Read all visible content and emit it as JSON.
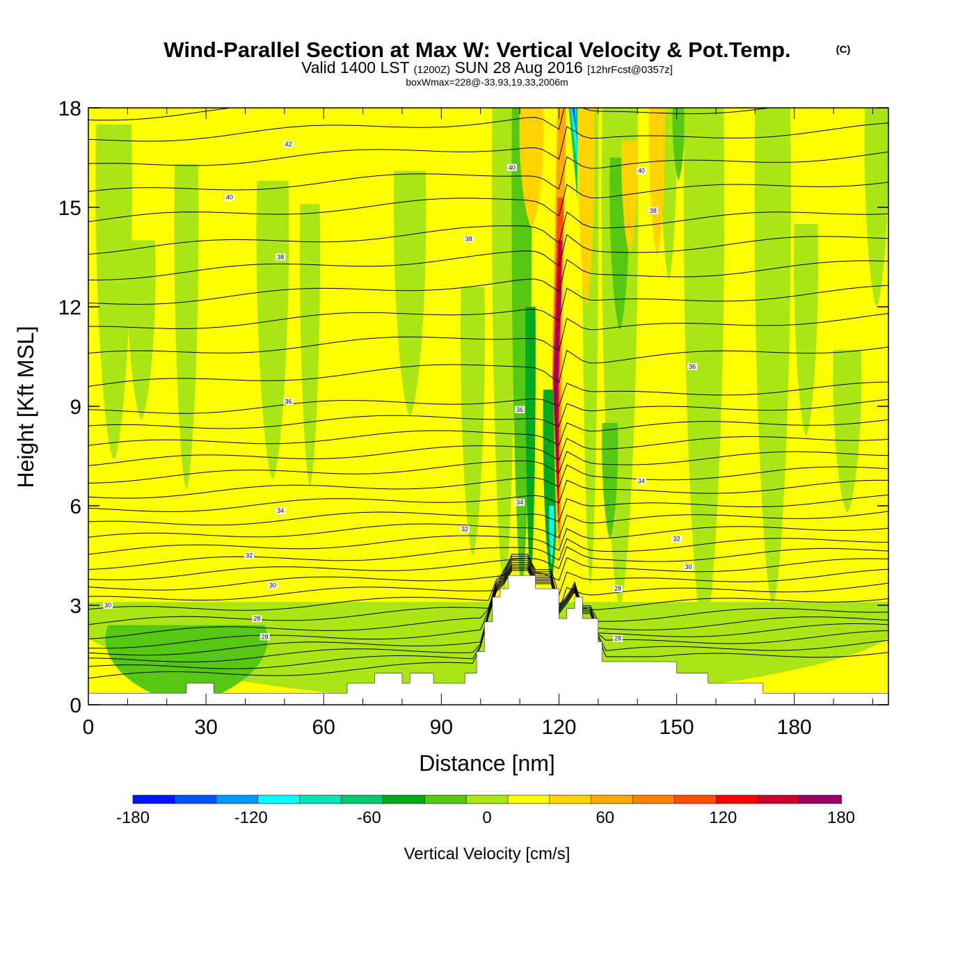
{
  "header": {
    "title": "Wind-Parallel Section at Max W: Vertical Velocity & Pot.Temp.",
    "copyright": "(C)",
    "valid_prefix": "Valid 1400 LST",
    "valid_utc": "(1200Z)",
    "valid_date": "SUN 28 Aug 2016",
    "forecast": "[12hrFcst@0357z]",
    "box_info": "boxWmax=228@-33.93,19.33,2006m"
  },
  "chart_data": {
    "type": "heatmap",
    "title": "Wind-Parallel Section at Max W: Vertical Velocity & Pot.Temp.",
    "xlabel": "Distance [nm]",
    "ylabel": "Height [Kft MSL]",
    "xlim": [
      0,
      204
    ],
    "ylim": [
      0,
      18
    ],
    "xticks": [
      0,
      30,
      60,
      90,
      120,
      150,
      180
    ],
    "yticks": [
      0,
      3,
      6,
      9,
      12,
      15,
      18
    ],
    "colorbar": {
      "label": "Vertical Velocity [cm/s]",
      "ticks": [
        -180,
        -120,
        -60,
        0,
        60,
        120,
        180
      ],
      "bounds": [
        -180,
        -160,
        -140,
        -120,
        -100,
        -80,
        -60,
        -40,
        -20,
        0,
        20,
        40,
        60,
        80,
        100,
        120,
        140,
        160,
        180
      ],
      "colors": [
        "#0014ff",
        "#0055ff",
        "#0099ff",
        "#00ffff",
        "#00e6b4",
        "#00c870",
        "#00aa1e",
        "#55c814",
        "#aae614",
        "#ffff00",
        "#ffd200",
        "#ffaa00",
        "#ff8200",
        "#ff5000",
        "#ff0000",
        "#c8002d",
        "#960064"
      ]
    },
    "background_velocity": 10,
    "velocity_bands": [
      {
        "x": 2,
        "w": 9,
        "top": 17.5,
        "bottom": 7.4,
        "w_cms": -10
      },
      {
        "x": 10,
        "w": 7,
        "top": 14.0,
        "bottom": 8.6,
        "w_cms": -10
      },
      {
        "x": 22,
        "w": 6,
        "top": 16.3,
        "bottom": 6.5,
        "w_cms": -10
      },
      {
        "x": 43,
        "w": 8,
        "top": 15.8,
        "bottom": 6.8,
        "w_cms": -10
      },
      {
        "x": 54,
        "w": 5,
        "top": 15.1,
        "bottom": 6.6,
        "w_cms": -10
      },
      {
        "x": 78,
        "w": 8,
        "top": 16.1,
        "bottom": 8.7,
        "w_cms": -10
      },
      {
        "x": 95,
        "w": 6,
        "top": 12.6,
        "bottom": 4.5,
        "w_cms": -10
      },
      {
        "x": 103,
        "w": 6,
        "top": 18.0,
        "bottom": 3.4,
        "w_cms": -10
      },
      {
        "x": 108,
        "w": 5,
        "top": 18.0,
        "bottom": 3.5,
        "w_cms": -30
      },
      {
        "x": 111.5,
        "w": 2.5,
        "top": 12.0,
        "bottom": 3.7,
        "w_cms": -50
      },
      {
        "x": 116,
        "w": 4,
        "top": 9.5,
        "bottom": 3.7,
        "w_cms": -50
      },
      {
        "x": 117.5,
        "w": 1.2,
        "top": 6.0,
        "bottom": 4.2,
        "w_cms": -110
      },
      {
        "x": 126,
        "w": 4,
        "top": 18.0,
        "bottom": 3.6,
        "w_cms": -10
      },
      {
        "x": 131,
        "w": 9,
        "top": 18.0,
        "bottom": 3.0,
        "w_cms": -10
      },
      {
        "x": 133,
        "w": 5,
        "top": 16.5,
        "bottom": 11.3,
        "w_cms": -30
      },
      {
        "x": 131,
        "w": 4,
        "top": 8.5,
        "bottom": 5.0,
        "w_cms": -30
      },
      {
        "x": 146,
        "w": 4,
        "top": 18.0,
        "bottom": 12.8,
        "w_cms": -10
      },
      {
        "x": 149,
        "w": 3,
        "top": 18.0,
        "bottom": 15.8,
        "w_cms": -30
      },
      {
        "x": 152,
        "w": 10,
        "top": 18.0,
        "bottom": 2.0,
        "w_cms": -10
      },
      {
        "x": 170,
        "w": 9,
        "top": 18.0,
        "bottom": 3.0,
        "w_cms": -10
      },
      {
        "x": 180,
        "w": 6,
        "top": 14.5,
        "bottom": 8.1,
        "w_cms": -10
      },
      {
        "x": 190,
        "w": 7,
        "top": 10.7,
        "bottom": 5.8,
        "w_cms": -10
      },
      {
        "x": 198,
        "w": 6,
        "top": 18.0,
        "bottom": 12.0,
        "w_cms": -10
      },
      {
        "x": 110,
        "w": 6,
        "top": 18.0,
        "bottom": 14.4,
        "w_cms": 30
      },
      {
        "x": 136,
        "w": 4,
        "top": 17.0,
        "bottom": 13.6,
        "w_cms": 30
      },
      {
        "x": 143,
        "w": 4,
        "top": 18.0,
        "bottom": 13.6,
        "w_cms": 30
      },
      {
        "x": 125,
        "w": 4,
        "top": 18.0,
        "bottom": 12.0,
        "w_cms": 30
      },
      {
        "x": 0,
        "w": 204,
        "top": 3.1,
        "bottom": 0,
        "w_cms": -10
      },
      {
        "x": 5,
        "w": 40,
        "top": 2.4,
        "bottom": 0,
        "w_cms": -30
      }
    ],
    "updraft_core": [
      {
        "x": [
          119.5,
          120.5
        ],
        "top": 18.0,
        "bottom": 3.6,
        "w_cms": 30
      },
      {
        "x": [
          119.8,
          121.8
        ],
        "top": 18.0,
        "bottom": 4.0,
        "w_cms": 50
      },
      {
        "x": [
          119.6,
          121.2
        ],
        "top": 15.3,
        "bottom": 4.5,
        "w_cms": 90
      },
      {
        "x": [
          119.8,
          120.8
        ],
        "top": 14.0,
        "bottom": 5.5,
        "w_cms": 130
      },
      {
        "x": [
          120.0,
          120.6
        ],
        "top": 12.6,
        "bottom": 6.2,
        "w_cms": 150
      }
    ],
    "downdraft_top": [
      {
        "x": [
          122.5,
          124.8
        ],
        "top": 18.0,
        "bottom": 15.2,
        "w_cms": -70
      },
      {
        "x": [
          123.0,
          124.3
        ],
        "top": 18.0,
        "bottom": 16.2,
        "w_cms": -110
      },
      {
        "x": [
          123.3,
          124.0
        ],
        "top": 18.0,
        "bottom": 17.0,
        "w_cms": -150
      }
    ],
    "terrain": {
      "x": [
        0,
        25,
        25,
        32,
        32,
        66,
        66,
        73,
        73,
        80,
        80,
        82,
        82,
        88,
        88,
        96,
        96,
        99,
        99,
        101,
        101,
        103,
        103,
        105,
        105,
        107,
        107,
        108,
        108,
        114,
        114,
        120,
        120,
        122,
        122,
        124,
        124,
        126,
        126,
        130,
        130,
        131,
        131,
        133,
        133,
        150,
        150,
        158,
        158,
        172,
        172,
        204
      ],
      "height": [
        0.35,
        0.35,
        0.65,
        0.65,
        0.35,
        0.35,
        0.65,
        0.65,
        0.95,
        0.95,
        0.65,
        0.65,
        0.95,
        0.95,
        0.65,
        0.65,
        0.95,
        0.95,
        1.6,
        1.6,
        2.5,
        2.5,
        3.25,
        3.25,
        3.5,
        3.5,
        3.9,
        3.9,
        3.9,
        3.9,
        3.5,
        3.5,
        2.6,
        2.6,
        2.9,
        2.9,
        3.25,
        3.25,
        2.6,
        2.6,
        1.9,
        1.9,
        1.3,
        1.3,
        1.3,
        1.3,
        0.95,
        0.95,
        0.65,
        0.65,
        0.35,
        0.35
      ]
    },
    "theta_contours": {
      "low_levels": [
        0.8,
        1.05,
        1.3,
        1.55,
        1.8,
        2.1,
        2.45,
        2.8,
        3.15,
        3.5,
        3.85,
        4.2,
        4.6,
        5.0,
        5.4,
        5.85,
        6.3,
        6.8,
        7.3,
        7.8,
        8.3,
        8.8
      ],
      "upper_levels": [
        9.6,
        10.5,
        11.3,
        12.1,
        12.9,
        13.7,
        14.6,
        15.4,
        16.2,
        17.0,
        17.7
      ]
    },
    "contour_labels": [
      {
        "x": 5,
        "y": 3.0,
        "text": "30"
      },
      {
        "x": 43,
        "y": 2.6,
        "text": "28"
      },
      {
        "x": 45,
        "y": 2.05,
        "text": "28"
      },
      {
        "x": 47,
        "y": 3.6,
        "text": "30"
      },
      {
        "x": 41,
        "y": 4.5,
        "text": "32"
      },
      {
        "x": 49,
        "y": 5.85,
        "text": "34"
      },
      {
        "x": 51,
        "y": 9.15,
        "text": "36"
      },
      {
        "x": 49,
        "y": 13.5,
        "text": "38"
      },
      {
        "x": 36,
        "y": 15.3,
        "text": "40"
      },
      {
        "x": 51,
        "y": 16.9,
        "text": "42"
      },
      {
        "x": 97,
        "y": 14.05,
        "text": "38"
      },
      {
        "x": 108,
        "y": 16.2,
        "text": "40"
      },
      {
        "x": 96,
        "y": 5.3,
        "text": "32"
      },
      {
        "x": 110,
        "y": 8.9,
        "text": "36"
      },
      {
        "x": 110,
        "y": 6.1,
        "text": "34"
      },
      {
        "x": 141,
        "y": 16.1,
        "text": "40"
      },
      {
        "x": 144,
        "y": 14.9,
        "text": "38"
      },
      {
        "x": 154,
        "y": 10.2,
        "text": "36"
      },
      {
        "x": 141,
        "y": 6.75,
        "text": "34"
      },
      {
        "x": 150,
        "y": 5.0,
        "text": "32"
      },
      {
        "x": 153,
        "y": 4.15,
        "text": "30"
      },
      {
        "x": 135,
        "y": 3.5,
        "text": "28"
      },
      {
        "x": 135,
        "y": 2.0,
        "text": "28"
      }
    ]
  }
}
